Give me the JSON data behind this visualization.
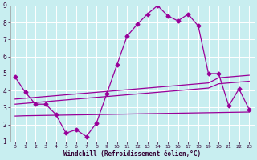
{
  "xlabel": "Windchill (Refroidissement éolien,°C)",
  "background_color": "#c8eef0",
  "grid_color": "#ffffff",
  "line_color": "#990099",
  "x_values": [
    0,
    1,
    2,
    3,
    4,
    5,
    6,
    7,
    8,
    9,
    10,
    11,
    12,
    13,
    14,
    15,
    16,
    17,
    18,
    19,
    20,
    21,
    22,
    23
  ],
  "series1": [
    4.8,
    3.9,
    3.2,
    3.2,
    2.6,
    1.5,
    1.7,
    1.3,
    2.1,
    3.8,
    5.5,
    7.2,
    7.9,
    8.5,
    9.0,
    8.4,
    8.1,
    8.5,
    7.8,
    5.0,
    5.0,
    3.1,
    4.1,
    2.9
  ],
  "series2": [
    3.5,
    3.55,
    3.6,
    3.65,
    3.7,
    3.75,
    3.8,
    3.85,
    3.9,
    3.95,
    4.0,
    4.05,
    4.1,
    4.15,
    4.2,
    4.25,
    4.3,
    4.35,
    4.4,
    4.45,
    4.75,
    4.8,
    4.85,
    4.9
  ],
  "series3": [
    3.2,
    3.25,
    3.3,
    3.35,
    3.4,
    3.45,
    3.5,
    3.55,
    3.6,
    3.65,
    3.7,
    3.75,
    3.8,
    3.85,
    3.9,
    3.95,
    4.0,
    4.05,
    4.1,
    4.15,
    4.4,
    4.45,
    4.5,
    4.55
  ],
  "series4": [
    2.5,
    2.52,
    2.53,
    2.54,
    2.55,
    2.56,
    2.57,
    2.58,
    2.59,
    2.6,
    2.61,
    2.62,
    2.63,
    2.64,
    2.65,
    2.66,
    2.67,
    2.68,
    2.69,
    2.7,
    2.71,
    2.72,
    2.73,
    2.74
  ],
  "ylim": [
    1,
    9
  ],
  "xlim": [
    0,
    23
  ],
  "yticks": [
    1,
    2,
    3,
    4,
    5,
    6,
    7,
    8,
    9
  ],
  "xticks": [
    0,
    1,
    2,
    3,
    4,
    5,
    6,
    7,
    8,
    9,
    10,
    11,
    12,
    13,
    14,
    15,
    16,
    17,
    18,
    19,
    20,
    21,
    22,
    23
  ]
}
